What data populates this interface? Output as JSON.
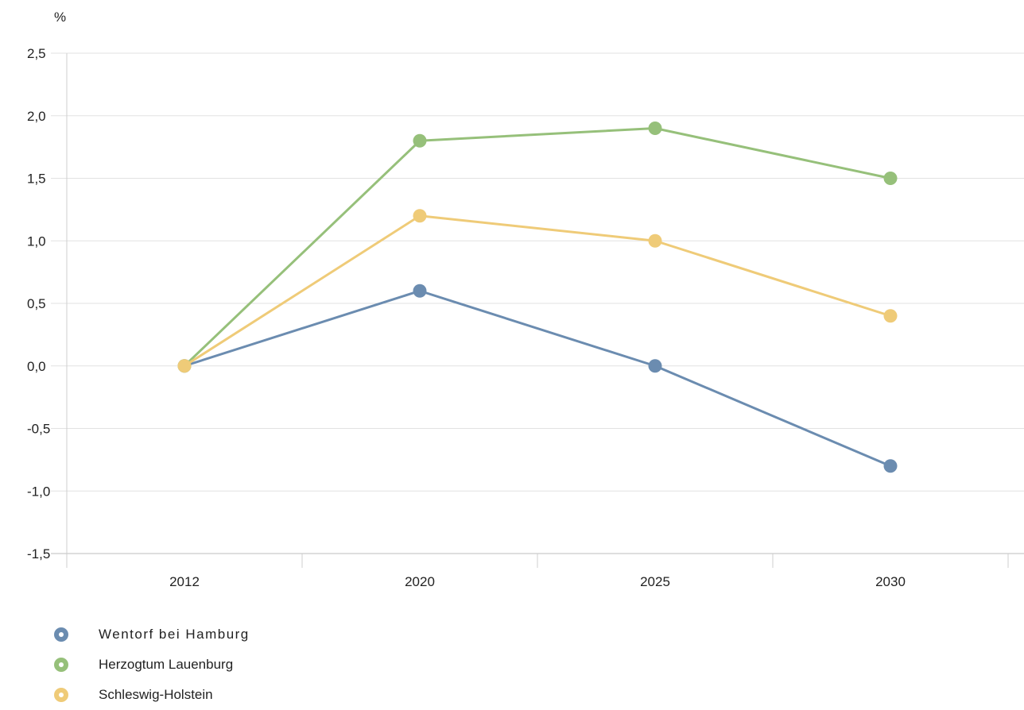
{
  "chart_data": {
    "type": "line",
    "unit_label": "%",
    "categories": [
      "2012",
      "2020",
      "2025",
      "2030"
    ],
    "ylim": [
      -1.5,
      2.5
    ],
    "yticks": [
      "2,5",
      "2,0",
      "1,5",
      "1,0",
      "0,5",
      "0,0",
      "-0,5",
      "-1,0",
      "-1,5"
    ],
    "ytick_values": [
      2.5,
      2.0,
      1.5,
      1.0,
      0.5,
      0.0,
      -0.5,
      -1.0,
      -1.5
    ],
    "grid": true,
    "legend_position": "bottom-left",
    "series": [
      {
        "name": "Wentorf bei Hamburg",
        "color": "#6b8cb0",
        "values": [
          0.0,
          0.6,
          0.0,
          -0.8
        ]
      },
      {
        "name": "Herzogtum Lauenburg",
        "color": "#96c07a",
        "values": [
          0.0,
          1.8,
          1.9,
          1.5
        ]
      },
      {
        "name": "Schleswig-Holstein",
        "color": "#efcb78",
        "values": [
          0.0,
          1.2,
          1.0,
          0.4
        ]
      }
    ]
  }
}
